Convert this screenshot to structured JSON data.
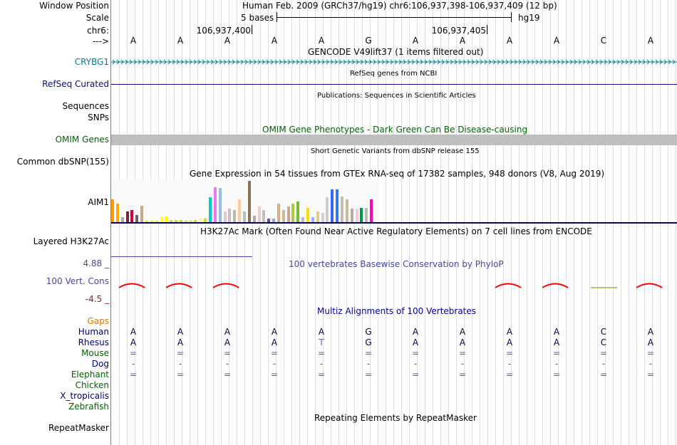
{
  "header": {
    "assembly_position": "Human Feb. 2009 (GRCh37/hg19)   chr6:106,937,398-106,937,409 (12 bp)",
    "scale_text": "5 bases",
    "db": "hg19",
    "pos_left": "106,937,400",
    "pos_right": "106,937,405",
    "strand_arrow": "--->"
  },
  "labels": {
    "window_position": "Window Position",
    "scale": "Scale",
    "chrom": "chr6:",
    "crybg1": "CRYBG1",
    "refseq": "RefSeq Curated",
    "sequences": "Sequences",
    "snps": "SNPs",
    "omim": "OMIM Genes",
    "dbsnp": "Common dbSNP(155)",
    "aim1": "AIM1",
    "h3k27ac": "Layered H3K27Ac",
    "phylop_max": "4.88 _",
    "phylop_label": "100 Vert. Cons",
    "phylop_min": "-4.5 _",
    "gaps": "Gaps"
  },
  "track_titles": {
    "gencode": "GENCODE V49lift37 (1 items filtered out)",
    "refseq": "RefSeq genes from NCBI",
    "publications": "Publications: Sequences in Scientific Articles",
    "omim": "OMIM Gene Phenotypes - Dark Green Can Be Disease-causing",
    "dbsnp": "Short Genetic Variants from dbSNP release 155",
    "gtex": "Gene Expression in 54 tissues from GTEx RNA-seq of 17382 samples, 948 donors (V8, Aug 2019)",
    "h3k27ac": "H3K27Ac Mark (Often Found Near Active Regulatory Elements) on 7 cell lines from ENCODE",
    "phylop": "100 vertebrates Basewise Conservation by PhyloP",
    "multiz": "Multiz Alignments of 100 Vertebrates",
    "repeatmasker": "Repeating Elements by RepeatMasker"
  },
  "bases": [
    "A",
    "A",
    "A",
    "A",
    "A",
    "G",
    "A",
    "A",
    "A",
    "A",
    "C",
    "A"
  ],
  "alignment": [
    {
      "species": "Human",
      "color": "#000080",
      "bases": [
        "A",
        "A",
        "A",
        "A",
        "A",
        "G",
        "A",
        "A",
        "A",
        "A",
        "C",
        "A"
      ]
    },
    {
      "species": "Rhesus",
      "color": "#000080",
      "bases": [
        "A",
        "A",
        "A",
        "A",
        "T",
        "G",
        "A",
        "A",
        "A",
        "A",
        "C",
        "A"
      ]
    },
    {
      "species": "Mouse",
      "color": "#006400",
      "bases": [
        "=",
        "=",
        "=",
        "=",
        "=",
        "=",
        "=",
        "=",
        "=",
        "=",
        "=",
        "="
      ]
    },
    {
      "species": "Dog",
      "color": "#000080",
      "bases": [
        "-",
        "-",
        "-",
        "-",
        "-",
        "-",
        "-",
        "-",
        "-",
        "-",
        "-",
        "-"
      ]
    },
    {
      "species": "Elephant",
      "color": "#006400",
      "bases": [
        "=",
        "=",
        "=",
        "=",
        "=",
        "=",
        "=",
        "=",
        "=",
        "=",
        "=",
        "="
      ]
    },
    {
      "species": "Chicken",
      "color": "#006400",
      "bases": []
    },
    {
      "species": "X_tropicalis",
      "color": "#000080",
      "bases": []
    },
    {
      "species": "Zebrafish",
      "color": "#006400",
      "bases": []
    }
  ],
  "repeatmasker_label": "RepeatMasker",
  "gtex_bars": [
    {
      "v": 0.55,
      "c": "#ff9900"
    },
    {
      "v": 0.45,
      "c": "#ffaa00"
    },
    {
      "v": 0.12,
      "c": "#aaaaaa"
    },
    {
      "v": 0.25,
      "c": "#7f1d3f"
    },
    {
      "v": 0.3,
      "c": "#cc0033"
    },
    {
      "v": 0.18,
      "c": "#666666"
    },
    {
      "v": 0.4,
      "c": "#c8aa8c"
    },
    {
      "v": 0.04,
      "c": "#eeee00"
    },
    {
      "v": 0.04,
      "c": "#eeee00"
    },
    {
      "v": 0.04,
      "c": "#eeee00"
    },
    {
      "v": 0.12,
      "c": "#ffff33"
    },
    {
      "v": 0.14,
      "c": "#ffff00"
    },
    {
      "v": 0.06,
      "c": "#dddd00"
    },
    {
      "v": 0.05,
      "c": "#dddd00"
    },
    {
      "v": 0.05,
      "c": "#dddd00"
    },
    {
      "v": 0.06,
      "c": "#eeee33"
    },
    {
      "v": 0.05,
      "c": "#eeee33"
    },
    {
      "v": 0.06,
      "c": "#dddd00"
    },
    {
      "v": 0.08,
      "c": "#ffff66"
    },
    {
      "v": 0.09,
      "c": "#dddd00"
    },
    {
      "v": 0.6,
      "c": "#00cccc"
    },
    {
      "v": 0.85,
      "c": "#ee77ee"
    },
    {
      "v": 0.82,
      "c": "#99bbdd"
    },
    {
      "v": 0.25,
      "c": "#ddcccc"
    },
    {
      "v": 0.32,
      "c": "#ccbbbb"
    },
    {
      "v": 0.3,
      "c": "#bbbbaa"
    },
    {
      "v": 0.55,
      "c": "#ffcc99"
    },
    {
      "v": 0.25,
      "c": "#bbbbbb"
    },
    {
      "v": 1.0,
      "c": "#8b7355"
    },
    {
      "v": 0.15,
      "c": "#aaaaaa"
    },
    {
      "v": 0.38,
      "c": "#eecccc"
    },
    {
      "v": 0.3,
      "c": "#ccbbbb"
    },
    {
      "v": 0.08,
      "c": "#7744aa"
    },
    {
      "v": 0.08,
      "c": "#99aacc"
    },
    {
      "v": 0.45,
      "c": "#ddaa88"
    },
    {
      "v": 0.3,
      "c": "#ccbb99"
    },
    {
      "v": 0.38,
      "c": "#ccaa88"
    },
    {
      "v": 0.45,
      "c": "#aacc44"
    },
    {
      "v": 0.5,
      "c": "#77bb33"
    },
    {
      "v": 0.12,
      "c": "#bbbbbb"
    },
    {
      "v": 0.35,
      "c": "#ffdd00"
    },
    {
      "v": 0.12,
      "c": "#aaaaff"
    },
    {
      "v": 0.25,
      "c": "#ddcc88"
    },
    {
      "v": 0.22,
      "c": "#ddcccc"
    },
    {
      "v": 0.6,
      "c": "#cccccc"
    },
    {
      "v": 0.8,
      "c": "#3366ff"
    },
    {
      "v": 0.8,
      "c": "#3377ee"
    },
    {
      "v": 0.62,
      "c": "#ccbbaa"
    },
    {
      "v": 0.55,
      "c": "#ccbb99"
    },
    {
      "v": 0.32,
      "c": "#bbaa99"
    },
    {
      "v": 0.32,
      "c": "#eeccdd"
    },
    {
      "v": 0.35,
      "c": "#009944"
    },
    {
      "v": 0.35,
      "c": "#bbbbbb"
    },
    {
      "v": 0.55,
      "c": "#ff00bb"
    }
  ],
  "colors": {
    "accent_blue": "#0000a0",
    "crybg1": "#0f7896",
    "refseq_line": "#0c0c78",
    "omim_bar": "#bebebe",
    "omim_text": "#006400",
    "phylop_text": "#4848a0",
    "phylop_min_color": "#8b2222",
    "gaps": "#e07800",
    "separator": "#dd5555"
  }
}
